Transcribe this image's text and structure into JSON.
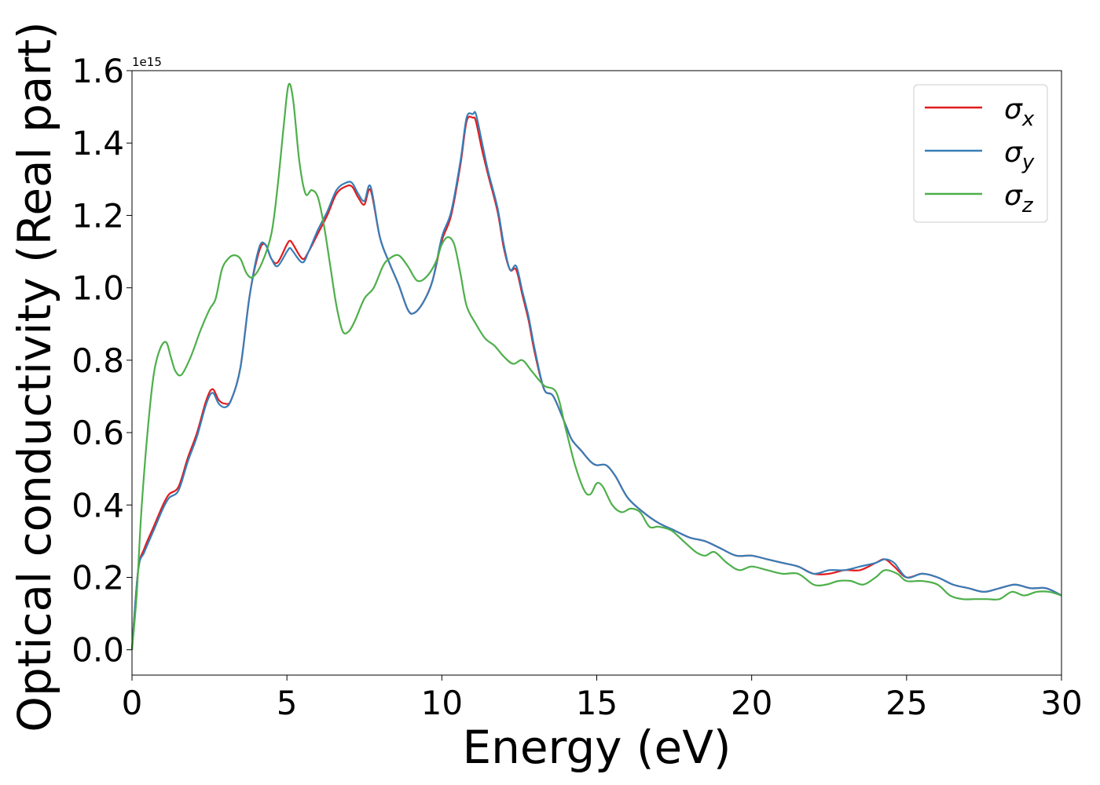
{
  "chart_data": {
    "type": "line",
    "title": "",
    "xlabel": "Energy (eV)",
    "ylabel": "Optical conductivity (Real part)",
    "y_scale_factor": "1e15",
    "xlim": [
      0,
      30
    ],
    "ylim": [
      -0.07,
      1.6
    ],
    "xticks": [
      0,
      5,
      10,
      15,
      20,
      25,
      30
    ],
    "xtick_labels": [
      "0",
      "5",
      "10",
      "15",
      "20",
      "25",
      "30"
    ],
    "yticks": [
      0.0,
      0.2,
      0.4,
      0.6,
      0.8,
      1.0,
      1.2,
      1.4,
      1.6
    ],
    "ytick_labels": [
      "0.0",
      "0.2",
      "0.4",
      "0.6",
      "0.8",
      "1.0",
      "1.2",
      "1.4",
      "1.6"
    ],
    "grid": false,
    "legend_position": "top-right",
    "series": [
      {
        "name": "σx",
        "sym": "σ",
        "sub": "x",
        "color": "#e41a1c",
        "x": [
          0,
          0.2,
          0.4,
          0.7,
          1.0,
          1.2,
          1.5,
          1.8,
          2.1,
          2.4,
          2.6,
          2.8,
          3.0,
          3.2,
          3.5,
          3.8,
          4.1,
          4.3,
          4.5,
          4.7,
          5.0,
          5.1,
          5.2,
          5.5,
          5.7,
          6.0,
          6.3,
          6.6,
          6.9,
          7.1,
          7.3,
          7.5,
          7.7,
          8.0,
          8.3,
          8.6,
          8.9,
          9.1,
          9.4,
          9.7,
          10.0,
          10.3,
          10.6,
          10.8,
          11.0,
          11.1,
          11.3,
          11.5,
          11.8,
          12.0,
          12.2,
          12.4,
          12.6,
          12.8,
          13.0,
          13.3,
          13.6,
          14.0,
          14.2,
          14.5,
          14.8,
          15.0,
          15.3,
          15.6,
          16.0,
          16.5,
          17.0,
          17.5,
          18.0,
          18.5,
          19.0,
          19.5,
          20.0,
          20.5,
          21.0,
          21.5,
          22.0,
          22.5,
          23.0,
          23.5,
          24.0,
          24.3,
          24.6,
          25.0,
          25.5,
          26.0,
          26.5,
          27.0,
          27.5,
          28.0,
          28.5,
          29.0,
          29.5,
          30.0
        ],
        "y": [
          0.0,
          0.22,
          0.28,
          0.34,
          0.4,
          0.43,
          0.45,
          0.53,
          0.6,
          0.69,
          0.72,
          0.69,
          0.68,
          0.69,
          0.78,
          0.98,
          1.1,
          1.12,
          1.08,
          1.07,
          1.12,
          1.13,
          1.12,
          1.08,
          1.1,
          1.15,
          1.2,
          1.26,
          1.28,
          1.28,
          1.25,
          1.23,
          1.27,
          1.14,
          1.07,
          1.01,
          0.94,
          0.93,
          0.96,
          1.02,
          1.13,
          1.2,
          1.34,
          1.46,
          1.47,
          1.46,
          1.38,
          1.31,
          1.21,
          1.11,
          1.05,
          1.05,
          0.98,
          0.91,
          0.82,
          0.72,
          0.7,
          0.62,
          0.58,
          0.55,
          0.52,
          0.51,
          0.51,
          0.48,
          0.42,
          0.38,
          0.35,
          0.33,
          0.31,
          0.3,
          0.28,
          0.26,
          0.26,
          0.25,
          0.24,
          0.23,
          0.21,
          0.21,
          0.22,
          0.22,
          0.24,
          0.25,
          0.23,
          0.2,
          0.21,
          0.2,
          0.18,
          0.17,
          0.16,
          0.17,
          0.18,
          0.17,
          0.17,
          0.15
        ]
      },
      {
        "name": "σy",
        "sym": "σ",
        "sub": "y",
        "color": "#377eb8",
        "x": [
          0,
          0.2,
          0.4,
          0.7,
          1.0,
          1.2,
          1.5,
          1.8,
          2.1,
          2.4,
          2.6,
          2.8,
          3.0,
          3.2,
          3.5,
          3.8,
          4.1,
          4.3,
          4.5,
          4.7,
          5.0,
          5.1,
          5.2,
          5.5,
          5.7,
          6.0,
          6.3,
          6.6,
          6.9,
          7.1,
          7.3,
          7.5,
          7.7,
          8.0,
          8.3,
          8.6,
          8.9,
          9.1,
          9.4,
          9.7,
          10.0,
          10.3,
          10.6,
          10.8,
          11.0,
          11.1,
          11.3,
          11.5,
          11.8,
          12.0,
          12.2,
          12.4,
          12.6,
          12.8,
          13.0,
          13.3,
          13.6,
          14.0,
          14.2,
          14.5,
          14.8,
          15.0,
          15.3,
          15.6,
          16.0,
          16.5,
          17.0,
          17.5,
          18.0,
          18.5,
          19.0,
          19.5,
          20.0,
          20.5,
          21.0,
          21.5,
          22.0,
          22.5,
          23.0,
          23.5,
          24.0,
          24.3,
          24.6,
          25.0,
          25.5,
          26.0,
          26.5,
          27.0,
          27.5,
          28.0,
          28.5,
          29.0,
          29.5,
          30.0
        ],
        "y": [
          0.0,
          0.22,
          0.27,
          0.33,
          0.39,
          0.42,
          0.44,
          0.52,
          0.59,
          0.68,
          0.71,
          0.68,
          0.67,
          0.69,
          0.78,
          0.98,
          1.11,
          1.12,
          1.08,
          1.06,
          1.1,
          1.11,
          1.1,
          1.07,
          1.1,
          1.16,
          1.21,
          1.27,
          1.29,
          1.29,
          1.26,
          1.24,
          1.28,
          1.14,
          1.07,
          1.01,
          0.94,
          0.93,
          0.96,
          1.02,
          1.14,
          1.21,
          1.35,
          1.47,
          1.48,
          1.48,
          1.4,
          1.32,
          1.22,
          1.12,
          1.05,
          1.06,
          0.99,
          0.92,
          0.83,
          0.72,
          0.7,
          0.62,
          0.58,
          0.55,
          0.52,
          0.51,
          0.51,
          0.48,
          0.42,
          0.38,
          0.35,
          0.33,
          0.31,
          0.3,
          0.28,
          0.26,
          0.26,
          0.25,
          0.24,
          0.23,
          0.21,
          0.22,
          0.22,
          0.23,
          0.24,
          0.25,
          0.24,
          0.2,
          0.21,
          0.2,
          0.18,
          0.17,
          0.16,
          0.17,
          0.18,
          0.17,
          0.17,
          0.15
        ]
      },
      {
        "name": "σz",
        "sym": "σ",
        "sub": "z",
        "color": "#4daf4a",
        "x": [
          0,
          0.15,
          0.3,
          0.5,
          0.7,
          0.9,
          1.1,
          1.25,
          1.4,
          1.6,
          1.9,
          2.2,
          2.5,
          2.7,
          2.9,
          3.1,
          3.3,
          3.5,
          3.7,
          3.9,
          4.2,
          4.5,
          4.7,
          4.9,
          5.05,
          5.2,
          5.4,
          5.6,
          5.8,
          6.0,
          6.2,
          6.4,
          6.6,
          6.8,
          7.0,
          7.2,
          7.5,
          7.8,
          8.1,
          8.3,
          8.6,
          8.9,
          9.2,
          9.5,
          9.8,
          10.0,
          10.2,
          10.4,
          10.6,
          10.8,
          11.1,
          11.4,
          11.7,
          12.0,
          12.3,
          12.6,
          12.9,
          13.3,
          13.7,
          14.0,
          14.3,
          14.6,
          14.8,
          15.0,
          15.2,
          15.5,
          15.8,
          16.1,
          16.4,
          16.7,
          17.0,
          17.4,
          17.8,
          18.2,
          18.5,
          18.8,
          19.2,
          19.6,
          20.0,
          20.5,
          21.0,
          21.5,
          22.0,
          22.4,
          22.8,
          23.2,
          23.6,
          24.0,
          24.3,
          24.7,
          25.0,
          25.5,
          26.0,
          26.4,
          26.8,
          27.2,
          27.6,
          28.0,
          28.4,
          28.8,
          29.2,
          29.6,
          30.0
        ],
        "y": [
          0.0,
          0.15,
          0.38,
          0.6,
          0.76,
          0.83,
          0.85,
          0.81,
          0.77,
          0.76,
          0.81,
          0.88,
          0.94,
          0.97,
          1.05,
          1.08,
          1.09,
          1.08,
          1.04,
          1.03,
          1.07,
          1.15,
          1.28,
          1.45,
          1.56,
          1.52,
          1.35,
          1.26,
          1.27,
          1.25,
          1.17,
          1.06,
          0.95,
          0.88,
          0.88,
          0.91,
          0.97,
          1.0,
          1.06,
          1.08,
          1.09,
          1.06,
          1.02,
          1.03,
          1.07,
          1.12,
          1.14,
          1.12,
          1.04,
          0.95,
          0.9,
          0.86,
          0.84,
          0.81,
          0.79,
          0.8,
          0.77,
          0.73,
          0.71,
          0.61,
          0.51,
          0.44,
          0.43,
          0.46,
          0.45,
          0.4,
          0.38,
          0.39,
          0.38,
          0.34,
          0.34,
          0.33,
          0.3,
          0.27,
          0.26,
          0.27,
          0.24,
          0.22,
          0.23,
          0.22,
          0.21,
          0.21,
          0.18,
          0.18,
          0.19,
          0.19,
          0.18,
          0.2,
          0.22,
          0.21,
          0.19,
          0.19,
          0.18,
          0.15,
          0.14,
          0.14,
          0.14,
          0.14,
          0.16,
          0.15,
          0.16,
          0.16,
          0.15
        ]
      }
    ]
  }
}
